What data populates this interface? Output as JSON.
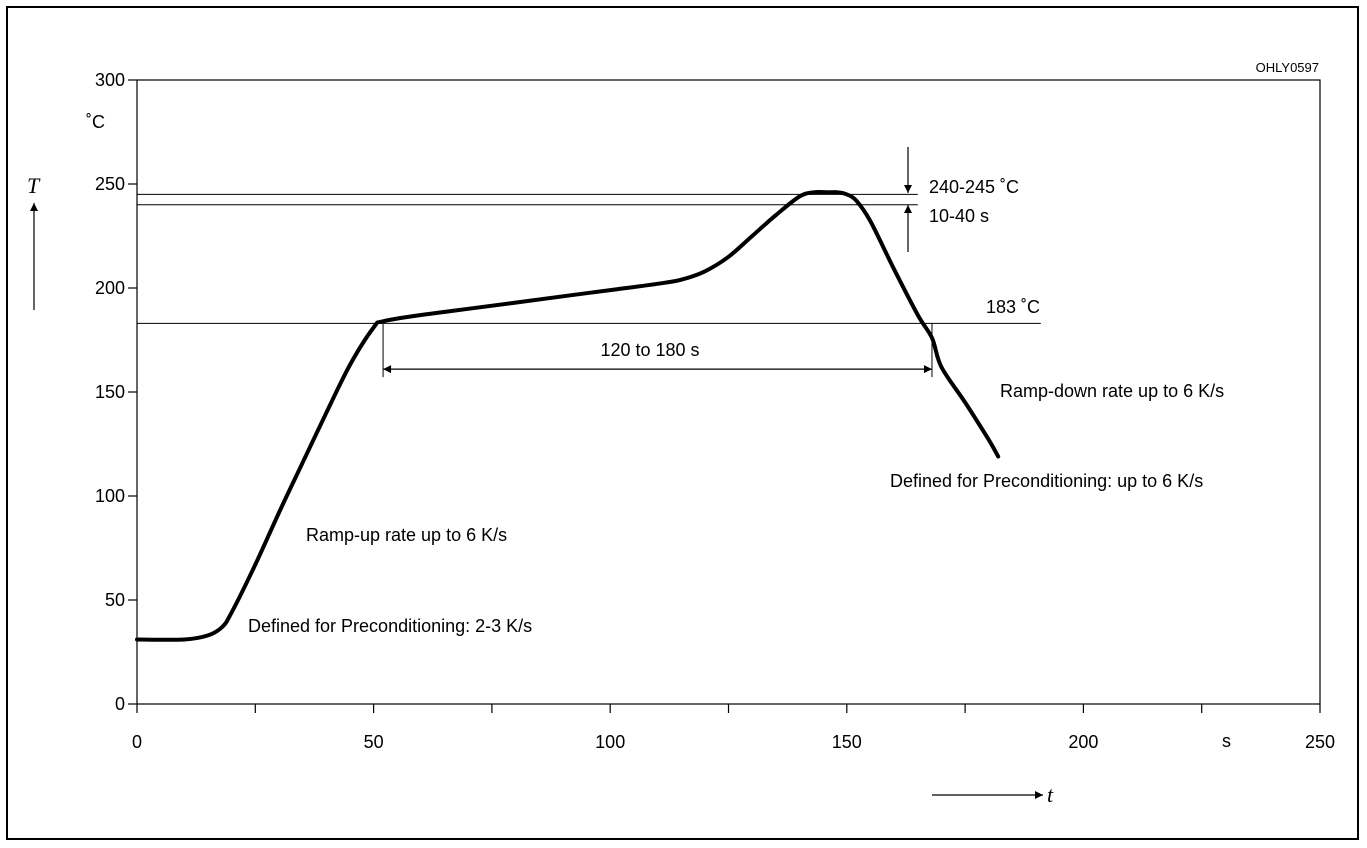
{
  "figure_code": "OHLY0597",
  "chart_data": {
    "type": "line",
    "x": [
      0,
      10,
      15,
      18,
      20,
      25,
      30,
      35,
      40,
      45,
      50,
      52,
      60,
      70,
      80,
      90,
      100,
      110,
      115,
      120,
      125,
      130,
      135,
      140,
      143,
      146,
      148,
      150,
      152,
      155,
      160,
      165,
      168,
      170,
      175,
      180,
      182
    ],
    "y": [
      31,
      31,
      33,
      37,
      44,
      67,
      92,
      116,
      140,
      163,
      181,
      184,
      187,
      190,
      193,
      196,
      199,
      202,
      204,
      208,
      215,
      225,
      235,
      244,
      246,
      246,
      246,
      245,
      242,
      232,
      209,
      187,
      176,
      162,
      145,
      127,
      119
    ],
    "xlim": [
      0,
      250
    ],
    "ylim": [
      0,
      300
    ],
    "xticks": [
      0,
      50,
      100,
      150,
      200,
      250
    ],
    "xtick_labels": [
      "0",
      "50",
      "100",
      "150",
      "200",
      "250"
    ],
    "yticks": [
      0,
      50,
      100,
      150,
      200,
      250,
      300
    ],
    "ytick_labels": [
      "0",
      "50",
      "100",
      "150",
      "200",
      "250",
      "300"
    ],
    "x_minor_ticks": [
      25,
      75,
      125,
      175,
      225
    ],
    "x_unit": "s",
    "y_unit": "˚C",
    "xlabel": "t",
    "ylabel": "T",
    "grid": false,
    "reference_lines": [
      {
        "y": 245,
        "x_end": 165
      },
      {
        "y": 240,
        "x_end": 165
      },
      {
        "y": 183,
        "x_end": 191
      }
    ],
    "interval_marker": {
      "x_start": 52,
      "x_end": 168,
      "y": 161,
      "label": "120 to 180 s"
    },
    "annotations": {
      "peak_temp": "240-245 ˚C",
      "peak_time": "10-40 s",
      "liquidus": "183 ˚C",
      "ramp_up": "Ramp-up rate up to 6 K/s",
      "ramp_up_precond": "Defined for Preconditioning: 2-3 K/s",
      "ramp_down": "Ramp-down rate up to 6 K/s",
      "ramp_down_precond": "Defined for Preconditioning: up to 6 K/s"
    }
  }
}
